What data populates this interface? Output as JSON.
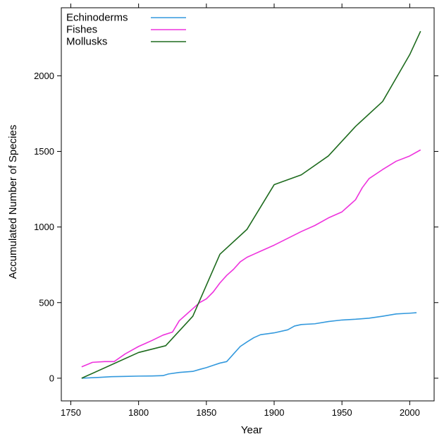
{
  "chart_data": {
    "type": "line",
    "title": "",
    "xlabel": "Year",
    "ylabel": "Accumulated Number of Species",
    "xlim": [
      1743,
      2018
    ],
    "ylim": [
      -150,
      2450
    ],
    "xticks": [
      1750,
      1800,
      1850,
      1900,
      1950,
      2000
    ],
    "yticks": [
      0,
      500,
      1000,
      1500,
      2000
    ],
    "grid": false,
    "legend_position": "top-left",
    "series": [
      {
        "name": "Echinoderms",
        "color": "#3399dd",
        "x": [
          1758,
          1770,
          1780,
          1790,
          1800,
          1810,
          1818,
          1822,
          1830,
          1840,
          1845,
          1850,
          1855,
          1860,
          1865,
          1870,
          1875,
          1880,
          1885,
          1890,
          1900,
          1910,
          1915,
          1920,
          1930,
          1940,
          1950,
          1960,
          1970,
          1980,
          1990,
          2000,
          2005
        ],
        "y": [
          0,
          5,
          10,
          12,
          14,
          15,
          17,
          28,
          38,
          45,
          58,
          70,
          85,
          100,
          110,
          160,
          210,
          240,
          268,
          288,
          300,
          320,
          345,
          355,
          360,
          375,
          385,
          390,
          397,
          410,
          425,
          430,
          433
        ]
      },
      {
        "name": "Fishes",
        "color": "#ee33dd",
        "x": [
          1758,
          1766,
          1775,
          1782,
          1790,
          1795,
          1800,
          1805,
          1810,
          1818,
          1825,
          1830,
          1835,
          1840,
          1845,
          1850,
          1855,
          1860,
          1865,
          1870,
          1875,
          1880,
          1885,
          1890,
          1895,
          1900,
          1910,
          1920,
          1930,
          1940,
          1950,
          1955,
          1960,
          1965,
          1970,
          1980,
          1990,
          2000,
          2008
        ],
        "y": [
          75,
          105,
          110,
          110,
          160,
          185,
          210,
          230,
          250,
          285,
          305,
          380,
          420,
          460,
          500,
          525,
          570,
          630,
          680,
          720,
          770,
          800,
          820,
          840,
          860,
          880,
          925,
          970,
          1010,
          1060,
          1100,
          1140,
          1180,
          1260,
          1320,
          1380,
          1435,
          1470,
          1510
        ]
      },
      {
        "name": "Mollusks",
        "color": "#1e6b1e",
        "x": [
          1758,
          1800,
          1820,
          1840,
          1860,
          1880,
          1900,
          1920,
          1940,
          1960,
          1980,
          2000,
          2008
        ],
        "y": [
          0,
          170,
          215,
          410,
          820,
          985,
          1280,
          1345,
          1470,
          1665,
          1830,
          2140,
          2295
        ]
      }
    ]
  }
}
